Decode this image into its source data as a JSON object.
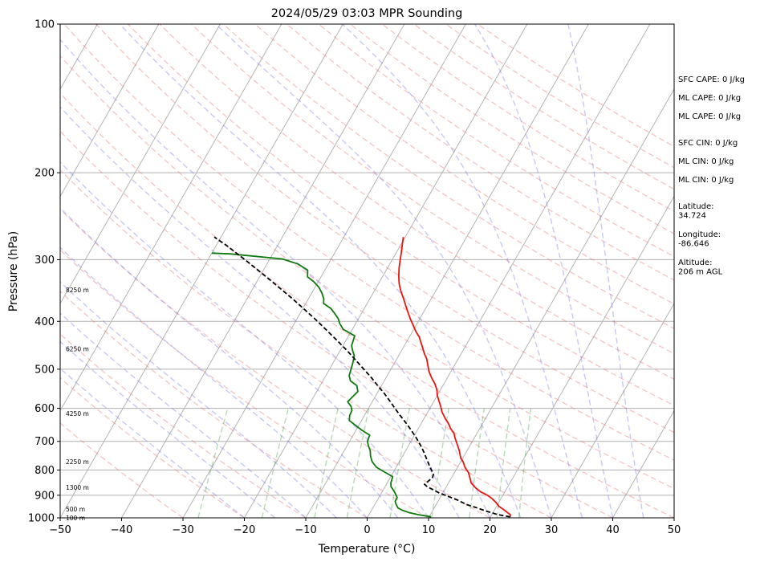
{
  "chart_data": {
    "type": "line",
    "subtype": "skew-t log-p sounding",
    "title": "2024/05/29 03:03 MPR Sounding",
    "xlabel": "Temperature (°C)",
    "ylabel": "Pressure (hPa)",
    "xlim": [
      -50,
      50
    ],
    "ylim": [
      1000,
      100
    ],
    "y_scale": "log",
    "x_ticks": [
      "−50",
      "−40",
      "−30",
      "−20",
      "−10",
      "0",
      "10",
      "20",
      "30",
      "40",
      "50"
    ],
    "y_ticks": [
      {
        "p": 1000,
        "label": "1000"
      },
      {
        "p": 900,
        "label": "900"
      },
      {
        "p": 800,
        "label": "800"
      },
      {
        "p": 700,
        "label": "700"
      },
      {
        "p": 600,
        "label": "600"
      },
      {
        "p": 500,
        "label": "500"
      },
      {
        "p": 400,
        "label": "400"
      },
      {
        "p": 300,
        "label": "300"
      },
      {
        "p": 200,
        "label": "200"
      },
      {
        "p": 100,
        "label": "100"
      }
    ],
    "grid": true,
    "height_labels": [
      {
        "p": 1000,
        "label": "100 m"
      },
      {
        "p": 960,
        "label": "500 m"
      },
      {
        "p": 868,
        "label": "1300 m"
      },
      {
        "p": 770,
        "label": "2250 m"
      },
      {
        "p": 615,
        "label": "4250 m"
      },
      {
        "p": 455,
        "label": "6250 m"
      },
      {
        "p": 345,
        "label": "8250 m"
      }
    ],
    "series": [
      {
        "name": "Temperature",
        "color": "#e8150f",
        "points": [
          [
            23.2,
            995
          ],
          [
            23.0,
            985
          ],
          [
            22.3,
            975
          ],
          [
            21.3,
            960
          ],
          [
            20.4,
            948
          ],
          [
            19.5,
            930
          ],
          [
            18.6,
            915
          ],
          [
            17.5,
            900
          ],
          [
            16.0,
            885
          ],
          [
            14.9,
            870
          ],
          [
            13.7,
            850
          ],
          [
            13.0,
            830
          ],
          [
            12.3,
            810
          ],
          [
            11.2,
            790
          ],
          [
            10.4,
            770
          ],
          [
            9.6,
            755
          ],
          [
            8.7,
            730
          ],
          [
            7.6,
            705
          ],
          [
            6.9,
            690
          ],
          [
            6.3,
            675
          ],
          [
            5.3,
            660
          ],
          [
            4.5,
            645
          ],
          [
            3.5,
            630
          ],
          [
            2.3,
            610
          ],
          [
            1.6,
            595
          ],
          [
            0.8,
            580
          ],
          [
            0.0,
            565
          ],
          [
            -0.6,
            550
          ],
          [
            -1.5,
            535
          ],
          [
            -2.6,
            520
          ],
          [
            -3.6,
            505
          ],
          [
            -4.4,
            490
          ],
          [
            -5.1,
            477
          ],
          [
            -6.0,
            465
          ],
          [
            -7.0,
            450
          ],
          [
            -7.7,
            440
          ],
          [
            -8.4,
            430
          ],
          [
            -9.4,
            420
          ],
          [
            -10.4,
            408
          ],
          [
            -11.4,
            397
          ],
          [
            -12.4,
            385
          ],
          [
            -13.5,
            372
          ],
          [
            -14.5,
            360
          ],
          [
            -15.7,
            347
          ],
          [
            -16.6,
            336
          ],
          [
            -17.4,
            324
          ],
          [
            -18.1,
            312
          ],
          [
            -18.7,
            300
          ],
          [
            -19.2,
            290
          ],
          [
            -19.8,
            279
          ],
          [
            -20.3,
            270
          ]
        ]
      },
      {
        "name": "Dewpoint",
        "color": "#0e7a0e",
        "points": [
          [
            10.3,
            995
          ],
          [
            8.0,
            985
          ],
          [
            6.2,
            975
          ],
          [
            5.0,
            965
          ],
          [
            4.1,
            955
          ],
          [
            3.5,
            940
          ],
          [
            3.0,
            925
          ],
          [
            3.0,
            910
          ],
          [
            2.2,
            890
          ],
          [
            1.5,
            875
          ],
          [
            1.0,
            865
          ],
          [
            0.6,
            850
          ],
          [
            0.5,
            840
          ],
          [
            0.3,
            825
          ],
          [
            -1.7,
            805
          ],
          [
            -3.2,
            790
          ],
          [
            -4.4,
            770
          ],
          [
            -5.2,
            750
          ],
          [
            -5.8,
            730
          ],
          [
            -6.5,
            715
          ],
          [
            -7.1,
            700
          ],
          [
            -7.3,
            680
          ],
          [
            -9.0,
            665
          ],
          [
            -10.5,
            650
          ],
          [
            -12.0,
            635
          ],
          [
            -12.4,
            620
          ],
          [
            -12.5,
            606
          ],
          [
            -13.0,
            595
          ],
          [
            -14.0,
            582
          ],
          [
            -13.7,
            570
          ],
          [
            -13.3,
            555
          ],
          [
            -14.0,
            540
          ],
          [
            -15.5,
            528
          ],
          [
            -16.2,
            515
          ],
          [
            -16.5,
            500
          ],
          [
            -16.8,
            485
          ],
          [
            -17.2,
            470
          ],
          [
            -18.0,
            458
          ],
          [
            -18.6,
            448
          ],
          [
            -18.8,
            438
          ],
          [
            -19.0,
            428
          ],
          [
            -21.5,
            415
          ],
          [
            -22.6,
            404
          ],
          [
            -23.3,
            395
          ],
          [
            -24.3,
            386
          ],
          [
            -25.4,
            377
          ],
          [
            -27.1,
            368
          ],
          [
            -27.5,
            360
          ],
          [
            -28.4,
            350
          ],
          [
            -29.4,
            341
          ],
          [
            -30.8,
            332
          ],
          [
            -32.2,
            325
          ],
          [
            -32.8,
            315
          ],
          [
            -35.0,
            306
          ],
          [
            -38.0,
            299
          ],
          [
            -47.0,
            292
          ],
          [
            -50,
            291
          ]
        ]
      },
      {
        "name": "Parcel",
        "color": "#000000",
        "points": [
          [
            23.2,
            995
          ],
          [
            21.0,
            985
          ],
          [
            18.9,
            970
          ],
          [
            17.0,
            955
          ],
          [
            15.0,
            940
          ],
          [
            13.0,
            920
          ],
          [
            11.2,
            905
          ],
          [
            9.4,
            890
          ],
          [
            7.9,
            875
          ],
          [
            6.9,
            865
          ],
          [
            6.2,
            855
          ],
          [
            6.6,
            840
          ],
          [
            6.9,
            830
          ],
          [
            6.7,
            815
          ],
          [
            6.0,
            800
          ],
          [
            5.1,
            780
          ],
          [
            4.2,
            760
          ],
          [
            3.3,
            740
          ],
          [
            2.3,
            720
          ],
          [
            1.2,
            700
          ],
          [
            0.0,
            680
          ],
          [
            -1.3,
            660
          ],
          [
            -2.7,
            640
          ],
          [
            -4.2,
            620
          ],
          [
            -5.7,
            600
          ],
          [
            -7.2,
            580
          ],
          [
            -8.8,
            560
          ],
          [
            -10.6,
            540
          ],
          [
            -12.4,
            520
          ],
          [
            -14.4,
            500
          ],
          [
            -16.5,
            480
          ],
          [
            -18.7,
            460
          ],
          [
            -21.1,
            440
          ],
          [
            -23.7,
            420
          ],
          [
            -26.4,
            400
          ],
          [
            -29.4,
            380
          ],
          [
            -32.6,
            360
          ],
          [
            -36.1,
            340
          ],
          [
            -39.9,
            320
          ],
          [
            -44.0,
            300
          ],
          [
            -48.5,
            280
          ],
          [
            -51.1,
            270
          ]
        ]
      }
    ],
    "reference_lines": [
      "dry adiabats",
      "moist adiabats",
      "mixing ratio lines",
      "isotherms"
    ],
    "side_panel": [
      {
        "group": "cape",
        "text": "SFC CAPE: 0 J/kg"
      },
      {
        "group": "cape",
        "text": "ML CAPE: 0 J/kg"
      },
      {
        "group": "cape",
        "text": "ML CAPE: 0 J/kg"
      },
      {
        "group": "cin",
        "text": "SFC CIN: 0 J/kg"
      },
      {
        "group": "cin",
        "text": "ML CIN: 0 J/kg"
      },
      {
        "group": "cin",
        "text": "ML CIN: 0 J/kg"
      },
      {
        "group": "loc",
        "text": "Latitude:\n34.724"
      },
      {
        "group": "loc",
        "text": "Longitude:\n-86.646"
      },
      {
        "group": "loc",
        "text": "Altitude:\n206 m AGL"
      }
    ]
  }
}
